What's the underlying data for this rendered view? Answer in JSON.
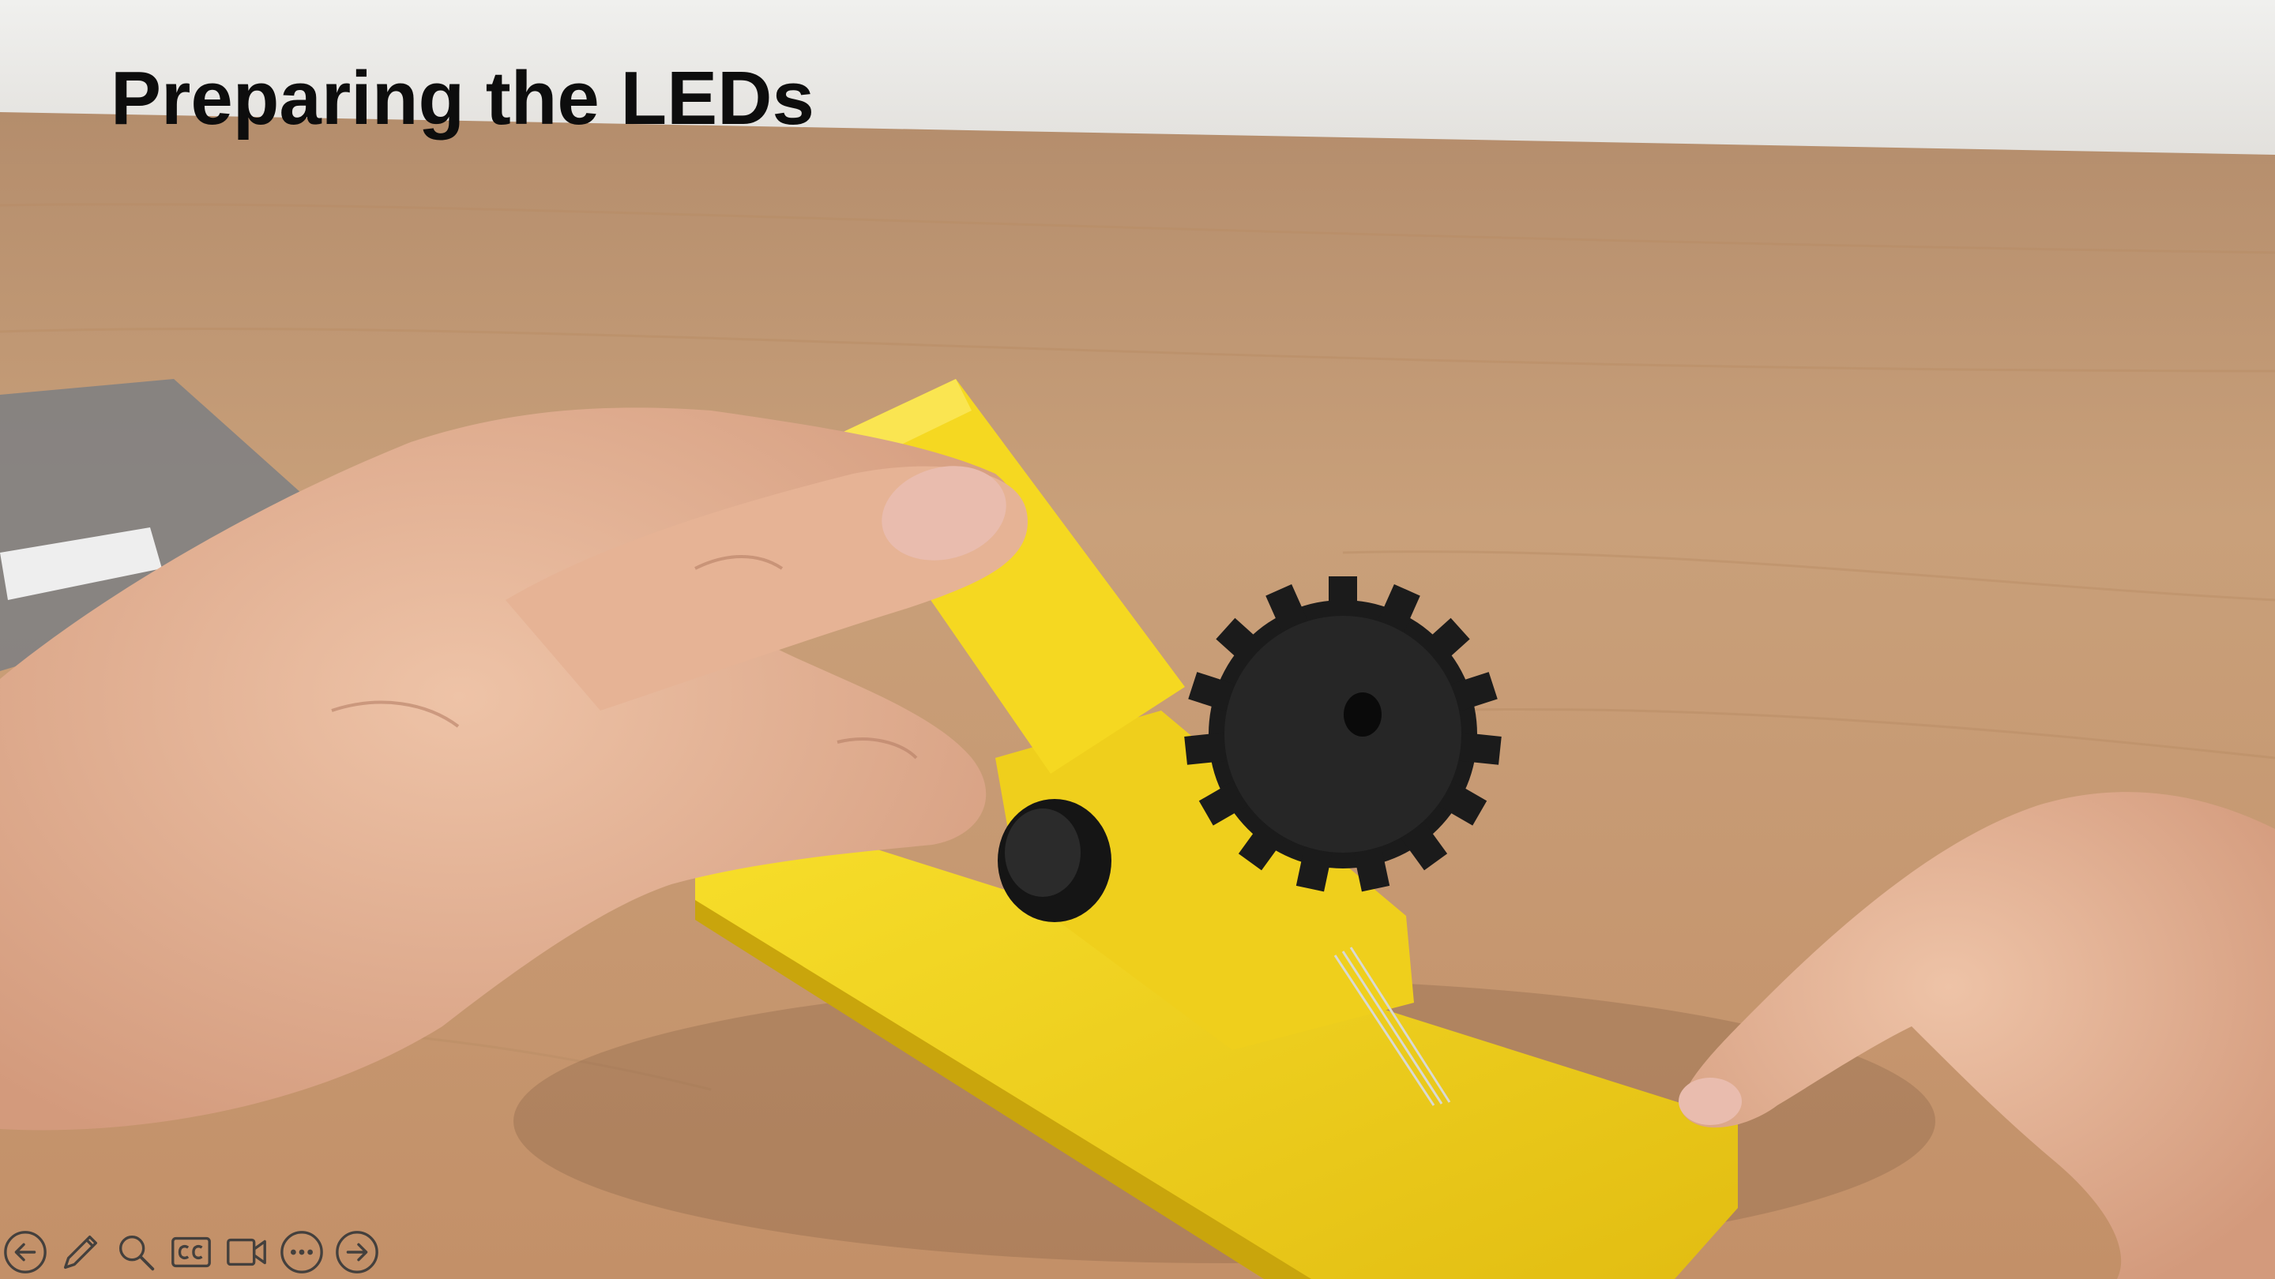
{
  "slide": {
    "title": "Preparing the LEDs"
  },
  "toolbar": {
    "buttons": [
      {
        "name": "previous-slide-button",
        "icon": "arrow-left-icon"
      },
      {
        "name": "pen-tool-button",
        "icon": "pen-icon"
      },
      {
        "name": "zoom-button",
        "icon": "magnifier-icon"
      },
      {
        "name": "subtitles-button",
        "icon": "cc-icon"
      },
      {
        "name": "camera-button",
        "icon": "video-camera-icon"
      },
      {
        "name": "more-options-button",
        "icon": "more-icon"
      },
      {
        "name": "next-slide-button",
        "icon": "arrow-right-icon"
      }
    ]
  },
  "colors": {
    "wall": "#e9e9e7",
    "table": "#c99e73",
    "jig": "#f2d21f",
    "knob": "#1b1b1b",
    "skin": "#e3b49a",
    "title_text": "#0d0d0d",
    "toolbar_icon": "#3a3a3a"
  }
}
